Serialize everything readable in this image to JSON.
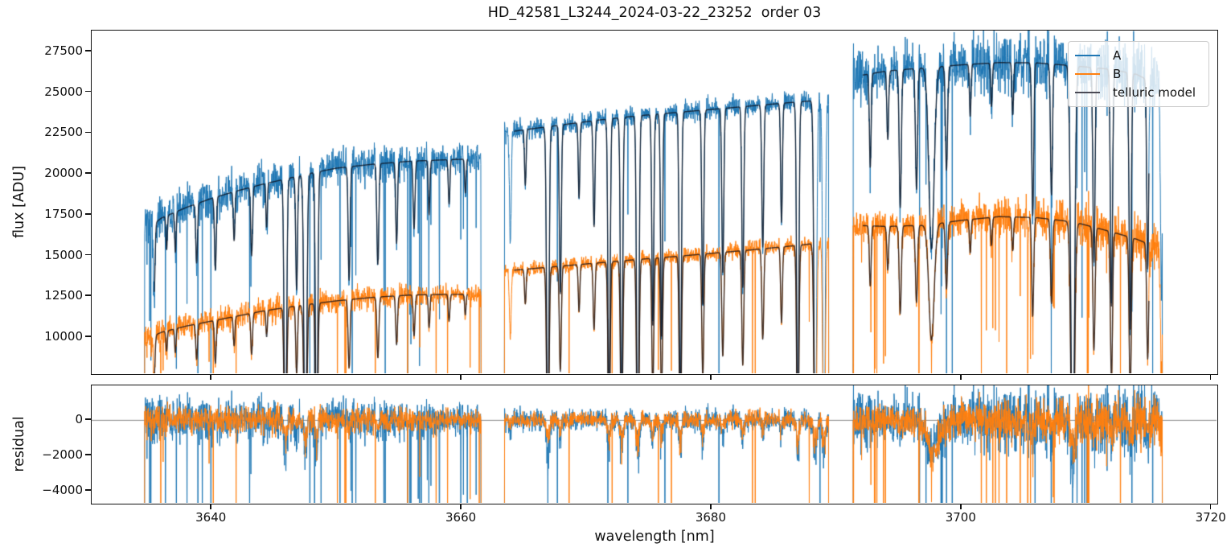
{
  "figure": {
    "title": "HD_42581_L3244_2024-03-22_23252  order 03",
    "background": "#ffffff"
  },
  "x_axis": {
    "label": "wavelength [nm]",
    "xlim": [
      3630.4,
      3720.6
    ],
    "ticks": [
      {
        "v": 3640,
        "label": "3640"
      },
      {
        "v": 3660,
        "label": "3660"
      },
      {
        "v": 3680,
        "label": "3680"
      },
      {
        "v": 3700,
        "label": "3700"
      },
      {
        "v": 3720,
        "label": "3720"
      }
    ]
  },
  "top_panel": {
    "ylabel": "flux [ADU]",
    "ylim": [
      7630,
      28780
    ],
    "ticks": [
      {
        "v": 27500,
        "label": "27500"
      },
      {
        "v": 25000,
        "label": "25000"
      },
      {
        "v": 22500,
        "label": "22500"
      },
      {
        "v": 20000,
        "label": "20000"
      },
      {
        "v": 17500,
        "label": "17500"
      },
      {
        "v": 15000,
        "label": "15000"
      },
      {
        "v": 12500,
        "label": "12500"
      },
      {
        "v": 10000,
        "label": "10000"
      }
    ]
  },
  "bottom_panel": {
    "ylabel": "residual",
    "ylim": [
      -4820,
      1950
    ],
    "zero_line_color": "#888888",
    "ticks": [
      {
        "v": 0,
        "label": "0"
      },
      {
        "v": -2000,
        "label": "−2000"
      },
      {
        "v": -4000,
        "label": "−4000"
      }
    ]
  },
  "legend": {
    "entries": [
      {
        "label": "A",
        "color": "#1f77b4"
      },
      {
        "label": "B",
        "color": "#ff7f0e"
      },
      {
        "label": "telluric model",
        "color": "#4a4a55"
      }
    ]
  },
  "chart_data": {
    "type": "line",
    "title": "HD_42581_L3244_2024-03-22_23252  order 03",
    "xlabel": "wavelength [nm]",
    "ylabel_top": "flux [ADU]",
    "ylabel_bottom": "residual",
    "xlim": [
      3630.4,
      3720.6
    ],
    "ylim_top": [
      7630,
      28780
    ],
    "ylim_bottom": [
      -4820,
      1950
    ],
    "seed": 42,
    "samples_per_segment": 1300,
    "segments": [
      {
        "start": 3634.6,
        "end": 3661.6
      },
      {
        "start": 3663.4,
        "end": 3689.4
      },
      {
        "start": 3691.3,
        "end": 3716.1
      }
    ],
    "series": [
      {
        "name": "A",
        "color": "#1f77b4",
        "continuum": [
          [
            3634.6,
            16500
          ],
          [
            3636,
            17300
          ],
          [
            3638,
            17950
          ],
          [
            3640,
            18500
          ],
          [
            3642,
            18950
          ],
          [
            3644,
            19350
          ],
          [
            3646,
            19700
          ],
          [
            3648,
            20050
          ],
          [
            3650,
            20350
          ],
          [
            3653,
            20600
          ],
          [
            3656,
            20780
          ],
          [
            3659,
            20870
          ],
          [
            3661.6,
            20920
          ],
          [
            3663.4,
            22520
          ],
          [
            3665,
            22700
          ],
          [
            3668,
            23000
          ],
          [
            3671,
            23300
          ],
          [
            3674,
            23550
          ],
          [
            3677,
            23750
          ],
          [
            3680,
            23950
          ],
          [
            3683,
            24150
          ],
          [
            3686,
            24350
          ],
          [
            3689.4,
            24560
          ],
          [
            3691.3,
            25950
          ],
          [
            3694,
            26300
          ],
          [
            3697,
            26500
          ],
          [
            3700,
            26680
          ],
          [
            3703,
            26820
          ],
          [
            3706,
            26800
          ],
          [
            3709,
            26620
          ],
          [
            3712,
            26400
          ],
          [
            3714,
            26100
          ],
          [
            3716.1,
            25300
          ]
        ],
        "noise_start": [
          0.035,
          0.012,
          0.022
        ],
        "noise_end": [
          0.02,
          0.013,
          0.04
        ],
        "start_boost": [
          1.6,
          1.0,
          2.1
        ],
        "spike_prob": [
          0.02,
          0.008,
          0.015
        ]
      },
      {
        "name": "B",
        "color": "#ff7f0e",
        "continuum": [
          [
            3634.6,
            9800
          ],
          [
            3636,
            10300
          ],
          [
            3638,
            10680
          ],
          [
            3640,
            10980
          ],
          [
            3642,
            11280
          ],
          [
            3644,
            11580
          ],
          [
            3646,
            11820
          ],
          [
            3648,
            12030
          ],
          [
            3650,
            12220
          ],
          [
            3653,
            12440
          ],
          [
            3656,
            12580
          ],
          [
            3659,
            12620
          ],
          [
            3661.6,
            12600
          ],
          [
            3663.4,
            14050
          ],
          [
            3665,
            14150
          ],
          [
            3668,
            14350
          ],
          [
            3671,
            14550
          ],
          [
            3674,
            14750
          ],
          [
            3677,
            14930
          ],
          [
            3680,
            15130
          ],
          [
            3683,
            15330
          ],
          [
            3686,
            15550
          ],
          [
            3689.4,
            15830
          ],
          [
            3691.3,
            16850
          ],
          [
            3694,
            16780
          ],
          [
            3697,
            16850
          ],
          [
            3700,
            17150
          ],
          [
            3703,
            17380
          ],
          [
            3706,
            17320
          ],
          [
            3709,
            17050
          ],
          [
            3712,
            16450
          ],
          [
            3714,
            16000
          ],
          [
            3716.1,
            15350
          ]
        ],
        "noise_start": [
          0.04,
          0.015,
          0.022
        ],
        "noise_end": [
          0.022,
          0.016,
          0.045
        ],
        "start_boost": [
          1.4,
          1.0,
          1.3
        ],
        "spike_prob": [
          0.012,
          0.008,
          0.015
        ]
      }
    ],
    "telluric_model": {
      "label": "telluric model",
      "color": "rgba(12,14,26,0.78)",
      "trim_start": 0.8,
      "trim_end": 1.1
    },
    "telluric_lines": [
      [
        3635.4,
        0.25,
        0.1
      ],
      [
        3636.4,
        0.12,
        0.08
      ],
      [
        3637.1,
        0.14,
        0.08
      ],
      [
        3638.8,
        0.2,
        0.1
      ],
      [
        3640.3,
        0.24,
        0.1
      ],
      [
        3641.8,
        0.16,
        0.09
      ],
      [
        3643.2,
        0.22,
        0.1
      ],
      [
        3644.4,
        0.14,
        0.08
      ],
      [
        3645.9,
        0.99,
        0.13
      ],
      [
        3646.8,
        0.35,
        0.1
      ],
      [
        3647.5,
        1.0,
        0.15
      ],
      [
        3648.4,
        0.97,
        0.12
      ],
      [
        3651.0,
        0.34,
        0.11
      ],
      [
        3653.3,
        0.3,
        0.11
      ],
      [
        3654.8,
        0.24,
        0.1
      ],
      [
        3656.2,
        0.2,
        0.1
      ],
      [
        3657.4,
        0.16,
        0.09
      ],
      [
        3659.0,
        0.13,
        0.09
      ],
      [
        3660.3,
        0.1,
        0.08
      ],
      [
        3663.9,
        0.3,
        0.1
      ],
      [
        3665.1,
        0.15,
        0.09
      ],
      [
        3666.9,
        0.88,
        0.13
      ],
      [
        3667.9,
        0.45,
        0.11
      ],
      [
        3669.4,
        0.2,
        0.09
      ],
      [
        3670.6,
        0.28,
        0.1
      ],
      [
        3671.8,
        0.78,
        0.12
      ],
      [
        3672.8,
        0.82,
        0.12
      ],
      [
        3674.1,
        0.94,
        0.13
      ],
      [
        3675.3,
        0.55,
        0.11
      ],
      [
        3676.0,
        0.58,
        0.11
      ],
      [
        3677.5,
        0.78,
        0.12
      ],
      [
        3679.3,
        0.5,
        0.11
      ],
      [
        3680.9,
        0.42,
        0.11
      ],
      [
        3682.5,
        0.46,
        0.11
      ],
      [
        3684.1,
        0.36,
        0.11
      ],
      [
        3685.6,
        0.3,
        0.1
      ],
      [
        3686.9,
        0.86,
        0.12
      ],
      [
        3688.3,
        0.99,
        0.14
      ],
      [
        3689.0,
        0.99,
        0.13
      ],
      [
        3692.7,
        0.22,
        0.1
      ],
      [
        3694.1,
        0.16,
        0.1
      ],
      [
        3695.1,
        0.32,
        0.12
      ],
      [
        3696.4,
        0.28,
        0.12
      ],
      [
        3697.6,
        0.42,
        0.3
      ],
      [
        3698.8,
        0.24,
        0.12
      ],
      [
        3700.7,
        0.12,
        0.09
      ],
      [
        3702.4,
        0.1,
        0.09
      ],
      [
        3704.1,
        0.12,
        0.09
      ],
      [
        3705.7,
        0.35,
        0.11
      ],
      [
        3707.2,
        0.3,
        0.11
      ],
      [
        3708.9,
        1.0,
        0.2
      ],
      [
        3710.6,
        0.45,
        0.12
      ],
      [
        3712.0,
        0.55,
        0.12
      ],
      [
        3713.5,
        0.6,
        0.12
      ],
      [
        3714.9,
        0.45,
        0.11
      ],
      [
        3716.0,
        0.5,
        0.11
      ]
    ],
    "mismatch_scale": 0.1,
    "residual_dips": [
      [
        3697.8,
        0.9,
        1300
      ]
    ]
  }
}
